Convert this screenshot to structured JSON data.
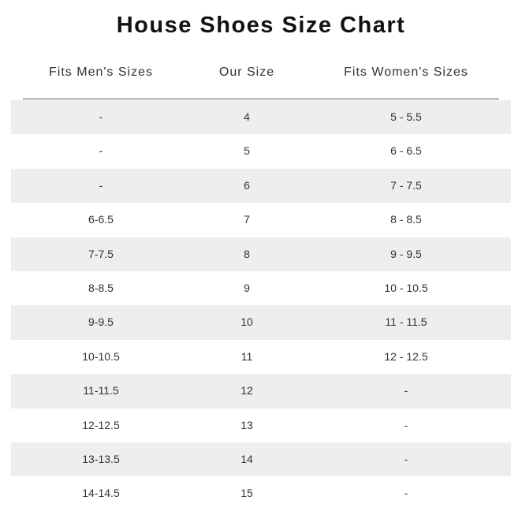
{
  "title": "House Shoes Size Chart",
  "headers": [
    "Fits Men's Sizes",
    "Our Size",
    "Fits Women's Sizes"
  ],
  "rows": [
    [
      "-",
      "4",
      "5 - 5.5"
    ],
    [
      "-",
      "5",
      "6 - 6.5"
    ],
    [
      "-",
      "6",
      "7 - 7.5"
    ],
    [
      "6-6.5",
      "7",
      "8 - 8.5"
    ],
    [
      "7-7.5",
      "8",
      "9 - 9.5"
    ],
    [
      "8-8.5",
      "9",
      "10 - 10.5"
    ],
    [
      "9-9.5",
      "10",
      "11 - 11.5"
    ],
    [
      "10-10.5",
      "11",
      "12 - 12.5"
    ],
    [
      "11-11.5",
      "12",
      "-"
    ],
    [
      "12-12.5",
      "13",
      "-"
    ],
    [
      "13-13.5",
      "14",
      "-"
    ],
    [
      "14-14.5",
      "15",
      "-"
    ]
  ],
  "colors": {
    "stripe": "#eeeeee",
    "rule": "#555555"
  }
}
